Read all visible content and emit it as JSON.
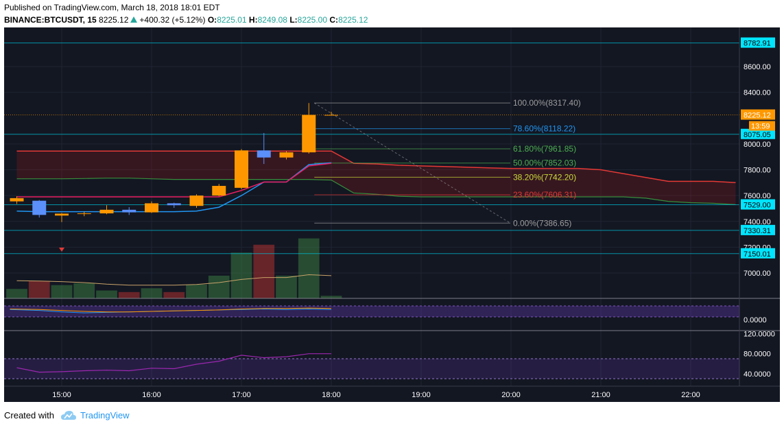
{
  "header": {
    "published": "Published on TradingView.com, March 18, 2018 18:01 EDT",
    "symbol": "BINANCE:BTCUSDT, 15",
    "last": "8225.12",
    "change": "+400.32 (+5.12%)",
    "o_label": "O:",
    "o_value": "8225.01",
    "h_label": "H:",
    "h_value": "8249.08",
    "l_label": "L:",
    "l_value": "8225.00",
    "c_label": "C:",
    "c_value": "8225.12"
  },
  "footer": {
    "created_with": "Created with",
    "brand": "TradingView",
    "icon": "tradingview-cloud-icon"
  },
  "colors": {
    "background": "#131722",
    "up": "#ff9800",
    "down": "#5b8ff9",
    "cloud_red": "#e53935",
    "cloud_green": "#388e3c",
    "conversion": "#2196f3",
    "base": "#e91e63",
    "price_tag": "#ff9800",
    "level_tag": "#00e5ff"
  },
  "chart_data": [
    {
      "type": "candlestick",
      "title": "BINANCE:BTCUSDT, 15",
      "x_tick_labels": [
        "15:00",
        "16:00",
        "17:00",
        "18:00",
        "19:00",
        "20:00",
        "21:00",
        "22:00"
      ],
      "y_tick_labels": [
        "8600.00",
        "8400.00",
        "8000.00",
        "7800.00",
        "7600.00",
        "7400.00",
        "7200.00",
        "7000.00"
      ],
      "ylim": [
        6950,
        8950
      ],
      "candles": [
        {
          "time": "14:30",
          "open": 7555,
          "high": 7595,
          "low": 7535,
          "close": 7580
        },
        {
          "time": "14:45",
          "open": 7560,
          "high": 7565,
          "low": 7430,
          "close": 7450
        },
        {
          "time": "15:00",
          "open": 7445,
          "high": 7465,
          "low": 7395,
          "close": 7460
        },
        {
          "time": "15:15",
          "open": 7458,
          "high": 7475,
          "low": 7440,
          "close": 7462
        },
        {
          "time": "15:30",
          "open": 7462,
          "high": 7525,
          "low": 7455,
          "close": 7490
        },
        {
          "time": "15:45",
          "open": 7490,
          "high": 7510,
          "low": 7450,
          "close": 7470
        },
        {
          "time": "16:00",
          "open": 7470,
          "high": 7555,
          "low": 7465,
          "close": 7540
        },
        {
          "time": "16:15",
          "open": 7540,
          "high": 7545,
          "low": 7505,
          "close": 7525
        },
        {
          "time": "16:30",
          "open": 7520,
          "high": 7610,
          "low": 7505,
          "close": 7600
        },
        {
          "time": "16:45",
          "open": 7600,
          "high": 7690,
          "low": 7595,
          "close": 7675
        },
        {
          "time": "17:00",
          "open": 7660,
          "high": 7960,
          "low": 7650,
          "close": 7950
        },
        {
          "time": "17:15",
          "open": 7950,
          "high": 8085,
          "low": 7845,
          "close": 7895
        },
        {
          "time": "17:30",
          "open": 7895,
          "high": 7945,
          "low": 7880,
          "close": 7935
        },
        {
          "time": "17:45",
          "open": 7935,
          "high": 8317,
          "low": 7925,
          "close": 8225
        },
        {
          "time": "18:00",
          "open": 8225.01,
          "high": 8249.08,
          "low": 8225.0,
          "close": 8225.12
        }
      ],
      "price_tag": {
        "value": "8225.12",
        "countdown": "13:59"
      },
      "fibonacci": [
        {
          "level": "100.00%",
          "price": "(8317.40)",
          "color": "#9e9e9e"
        },
        {
          "level": "78.60%",
          "price": "(8118.22)",
          "color": "#2196f3"
        },
        {
          "level": "61.80%",
          "price": "(7961.85)",
          "color": "#4caf50"
        },
        {
          "level": "50.00%",
          "price": "(7852.03)",
          "color": "#4caf50"
        },
        {
          "level": "38.20%",
          "price": "(7742.20)",
          "color": "#cddc39"
        },
        {
          "level": "23.60%",
          "price": "(7606.31)",
          "color": "#e53935"
        },
        {
          "level": "0.00%",
          "price": "(7386.65)",
          "color": "#9e9e9e"
        }
      ],
      "horizontal_levels": [
        "8782.91",
        "8075.05",
        "7529.00",
        "7330.31",
        "7150.01"
      ],
      "ichimoku": {
        "span_a": [
          7730,
          7730,
          7730,
          7732,
          7735,
          7735,
          7730,
          7725,
          7725,
          7725,
          7725,
          7725,
          7725,
          7725,
          7720,
          7620,
          7610,
          7595,
          7590,
          7590,
          7590,
          7590,
          7590,
          7590,
          7590,
          7590,
          7590,
          7590,
          7580,
          7555,
          7545,
          7540,
          7530
        ],
        "span_b": [
          7945,
          7945,
          7945,
          7945,
          7945,
          7945,
          7945,
          7945,
          7945,
          7945,
          7945,
          7945,
          7945,
          7945,
          7945,
          7850,
          7845,
          7835,
          7830,
          7825,
          7820,
          7815,
          7810,
          7810,
          7810,
          7810,
          7800,
          7770,
          7740,
          7710,
          7710,
          7710,
          7700
        ],
        "conversion": [
          7480,
          7475,
          7475,
          7475,
          7475,
          7475,
          7475,
          7475,
          7480,
          7510,
          7600,
          7705,
          7705,
          7840,
          7855
        ],
        "base": [
          7590,
          7590,
          7590,
          7590,
          7590,
          7590,
          7590,
          7590,
          7590,
          7590,
          7640,
          7705,
          7705,
          7830,
          7850
        ]
      },
      "volume": [
        {
          "value": 0.3,
          "up": true
        },
        {
          "value": 0.55,
          "up": false
        },
        {
          "value": 0.42,
          "up": true
        },
        {
          "value": 0.48,
          "up": true
        },
        {
          "value": 0.25,
          "up": true
        },
        {
          "value": 0.2,
          "up": false
        },
        {
          "value": 0.32,
          "up": true
        },
        {
          "value": 0.2,
          "up": false
        },
        {
          "value": 0.44,
          "up": true
        },
        {
          "value": 0.72,
          "up": true
        },
        {
          "value": 1.45,
          "up": true
        },
        {
          "value": 1.7,
          "up": false
        },
        {
          "value": 0.72,
          "up": true
        },
        {
          "value": 1.9,
          "up": true
        },
        {
          "value": 0.08,
          "up": true
        }
      ],
      "volume_ma": [
        0.56,
        0.55,
        0.53,
        0.5,
        0.45,
        0.42,
        0.42,
        0.42,
        0.44,
        0.5,
        0.6,
        0.66,
        0.66,
        0.75,
        0.72
      ]
    },
    {
      "type": "line",
      "y_tick_labels": [
        "0.0000"
      ],
      "series": [
        {
          "values": [
            0.2,
            0.1,
            -0.05,
            -0.15,
            -0.1,
            -0.05,
            0.0,
            0.05,
            0.1,
            0.15,
            0.2,
            0.25,
            0.2,
            0.25,
            0.2
          ],
          "color": "#2196f3"
        },
        {
          "values": [
            0.25,
            0.2,
            0.1,
            0.0,
            -0.05,
            -0.05,
            0.0,
            0.05,
            0.1,
            0.15,
            0.25,
            0.3,
            0.3,
            0.35,
            0.3
          ],
          "color": "#ff9800"
        }
      ]
    },
    {
      "type": "line",
      "y_tick_labels": [
        "120.0000",
        "80.0000",
        "40.0000"
      ],
      "ylim": [
        15,
        125
      ],
      "levels": [
        70,
        30
      ],
      "series": [
        {
          "values": [
            52,
            43,
            44,
            46,
            47,
            46,
            51,
            50,
            59,
            65,
            77,
            72,
            74,
            80,
            80
          ],
          "color": "#9c27b0"
        }
      ]
    }
  ]
}
